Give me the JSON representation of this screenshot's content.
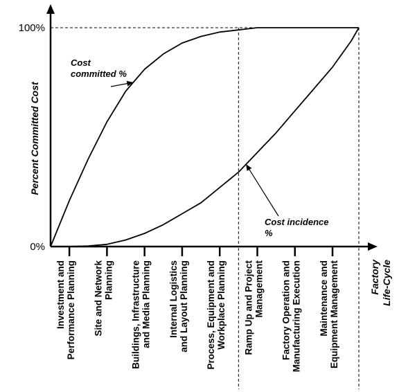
{
  "chart_data": {
    "type": "line",
    "ylabel": "Percent Committed Cost",
    "xlabel": [
      "Factory",
      "Life-Cycle"
    ],
    "y_ticks": [
      "0%",
      "100%"
    ],
    "ylim": [
      0,
      100
    ],
    "categories": [
      [
        "Investment and",
        "Performance Planning"
      ],
      [
        "Site and Network",
        "Planning"
      ],
      [
        "Buildings, Infrastructure",
        "and Media Planning"
      ],
      [
        "Internal Logistics",
        "and Layout Planning"
      ],
      [
        "Process, Equipment and",
        "Workplace Planning"
      ],
      [
        "Ramp Up and Project",
        "Management"
      ],
      [
        "Factory Operation and",
        "Manufacturing Execution"
      ],
      [
        "Maintenance and",
        "Equipment Management"
      ]
    ],
    "x_range": [
      0,
      8.2
    ],
    "x": [
      0,
      0.5,
      1,
      1.5,
      2,
      2.5,
      3,
      3.5,
      4,
      4.5,
      5,
      5.5,
      6,
      6.5,
      7,
      7.5,
      8,
      8.2
    ],
    "series": [
      {
        "name": "Cost committed %",
        "values": [
          0,
          21,
          40,
          57,
          71,
          81,
          88,
          93,
          96,
          98,
          99,
          100,
          100,
          100,
          100,
          100,
          100,
          100
        ]
      },
      {
        "name": "Cost incidence %",
        "values": [
          0,
          0,
          0.3,
          1,
          3,
          6,
          10,
          15,
          20,
          27,
          34,
          43,
          52,
          62,
          72,
          82,
          94,
          100
        ]
      }
    ],
    "annotations": [
      {
        "text": [
          "Cost",
          "committed %"
        ],
        "series": 0,
        "at_x": 2.2
      },
      {
        "text": [
          "Cost incidence",
          "%"
        ],
        "series": 1,
        "at_x": 5.2
      }
    ],
    "reference_lines": [
      {
        "orientation": "horizontal",
        "at_y": 100,
        "style": "dashed"
      },
      {
        "orientation": "vertical",
        "at_x": 5,
        "style": "dashed"
      },
      {
        "orientation": "vertical",
        "at_x": 8.2,
        "style": "dashed"
      }
    ],
    "grid": false,
    "legend": "none"
  }
}
